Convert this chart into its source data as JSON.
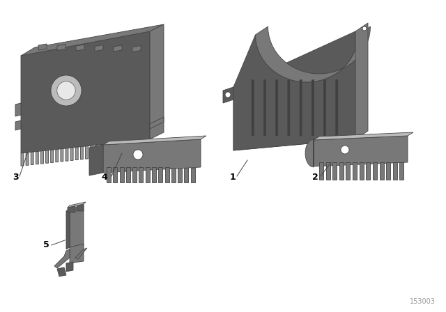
{
  "background_color": "#ffffff",
  "part_number": "153003",
  "fig_width": 6.4,
  "fig_height": 4.48,
  "dpi": 100,
  "color_dark": "#5a5a5a",
  "color_mid": "#787878",
  "color_light": "#999999",
  "color_lighter": "#bbbbbb",
  "edge_color": "#444444"
}
